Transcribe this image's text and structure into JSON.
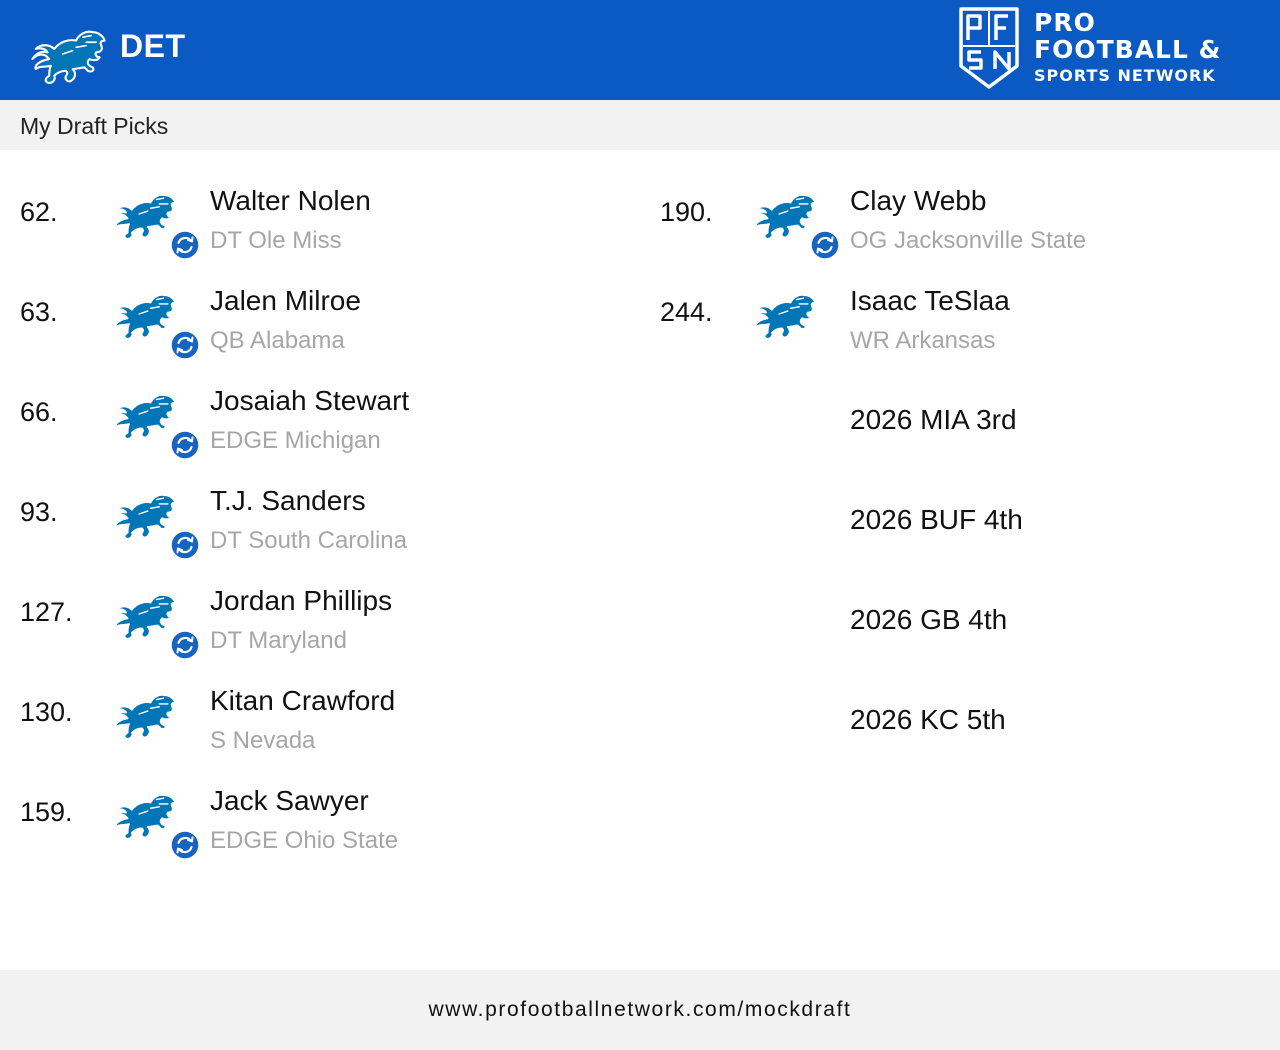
{
  "header": {
    "team_abbr": "DET",
    "brand_line1": "PRO",
    "brand_line2": "FOOTBALL &",
    "brand_line3": "SPORTS NETWORK",
    "background_color": "#0b5ac4",
    "team_logo_icon": "lion-icon",
    "brand_logo_icon": "pfsn-shield-icon"
  },
  "subheader": {
    "title": "My Draft Picks"
  },
  "picks_left": [
    {
      "number": "62.",
      "name": "Walter Nolen",
      "info": "DT Ole Miss",
      "traded": true
    },
    {
      "number": "63.",
      "name": "Jalen Milroe",
      "info": "QB Alabama",
      "traded": true
    },
    {
      "number": "66.",
      "name": "Josaiah Stewart",
      "info": "EDGE Michigan",
      "traded": true
    },
    {
      "number": "93.",
      "name": "T.J. Sanders",
      "info": "DT South Carolina",
      "traded": true
    },
    {
      "number": "127.",
      "name": "Jordan Phillips",
      "info": "DT Maryland",
      "traded": true
    },
    {
      "number": "130.",
      "name": "Kitan Crawford",
      "info": "S Nevada",
      "traded": false
    },
    {
      "number": "159.",
      "name": "Jack Sawyer",
      "info": "EDGE Ohio State",
      "traded": true
    }
  ],
  "picks_right": [
    {
      "number": "190.",
      "name": "Clay Webb",
      "info": "OG Jacksonville State",
      "traded": true
    },
    {
      "number": "244.",
      "name": "Isaac TeSlaa",
      "info": "WR Arkansas",
      "traded": false
    }
  ],
  "future_picks": [
    "2026 MIA 3rd",
    "2026 BUF 4th",
    "2026 GB 4th",
    "2026 KC 5th"
  ],
  "footer": {
    "url": "www.profootballnetwork.com/mockdraft"
  },
  "colors": {
    "lion_blue": "#0076b6",
    "trade_badge": "#1565c0",
    "muted_text": "#a6a6a6"
  }
}
